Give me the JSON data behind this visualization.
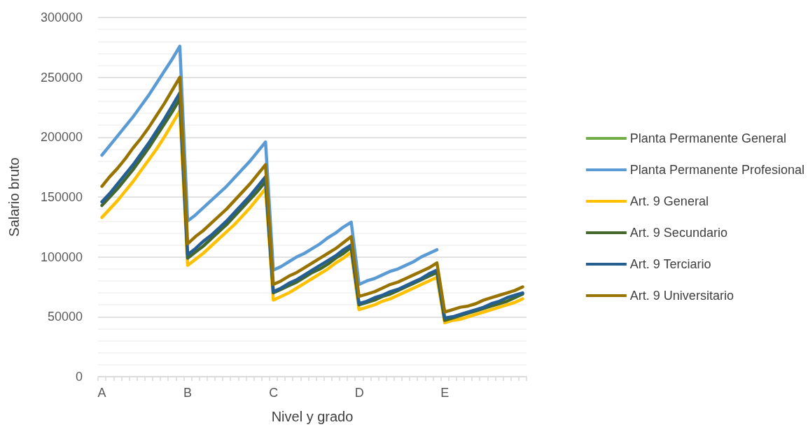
{
  "chart_data": {
    "type": "line",
    "xlabel": "Nivel y grado",
    "ylabel": "Salario bruto",
    "categories": [
      "A",
      null,
      null,
      null,
      null,
      null,
      null,
      null,
      null,
      null,
      null,
      "B",
      null,
      null,
      null,
      null,
      null,
      null,
      null,
      null,
      null,
      null,
      "C",
      null,
      null,
      null,
      null,
      null,
      null,
      null,
      null,
      null,
      null,
      "D",
      null,
      null,
      null,
      null,
      null,
      null,
      null,
      null,
      null,
      null,
      "E",
      null,
      null,
      null,
      null,
      null,
      null,
      null,
      null,
      null,
      null
    ],
    "ylim": [
      0,
      300000
    ],
    "yticks": [
      0,
      50000,
      100000,
      150000,
      200000,
      250000,
      300000
    ],
    "grid": "y",
    "legend": "right",
    "marker": "none",
    "line_style": "solid",
    "series": [
      {
        "name": "Planta Permanente General",
        "color": "#70ad47",
        "values": [
          null,
          null,
          null,
          null,
          null,
          null,
          null,
          null,
          null,
          null,
          null,
          null,
          null,
          null,
          null,
          null,
          null,
          null,
          null,
          null,
          null,
          null,
          null,
          null,
          null,
          null,
          null,
          null,
          null,
          null,
          null,
          null,
          null,
          null,
          null,
          null,
          null,
          null,
          null,
          null,
          null,
          null,
          null,
          null,
          null,
          null,
          null,
          null,
          null,
          null,
          null,
          null,
          null,
          null,
          null
        ]
      },
      {
        "name": "Planta Permanente Profesional",
        "color": "#5b9bd5",
        "values": [
          185000,
          193000,
          201000,
          209000,
          217000,
          226000,
          235000,
          245000,
          255000,
          265000,
          276000,
          130000,
          135000,
          141000,
          147000,
          153000,
          159000,
          166000,
          173000,
          180000,
          188000,
          196000,
          89000,
          92000,
          96000,
          100000,
          103000,
          107000,
          111000,
          116000,
          120000,
          125000,
          129000,
          77000,
          80000,
          82000,
          85000,
          88000,
          90000,
          93000,
          96000,
          100000,
          103000,
          106000,
          null,
          null,
          null,
          null,
          null,
          null,
          null,
          null,
          null,
          null,
          null
        ]
      },
      {
        "name": "Art. 9 General",
        "color": "#ffc000",
        "values": [
          133000,
          140000,
          147000,
          155000,
          163000,
          172000,
          181000,
          190000,
          200000,
          211000,
          222000,
          93000,
          98000,
          103000,
          109000,
          115000,
          121000,
          127000,
          134000,
          141000,
          149000,
          157000,
          64000,
          67000,
          70000,
          74000,
          78000,
          82000,
          86000,
          90000,
          95000,
          99000,
          104000,
          56000,
          58000,
          60000,
          63000,
          65000,
          68000,
          71000,
          74000,
          77000,
          80000,
          83000,
          45000,
          47000,
          48000,
          50000,
          52000,
          54000,
          56000,
          58000,
          60000,
          62000,
          65000
        ]
      },
      {
        "name": "Art. 9 Secundario",
        "color": "#43682b",
        "values": [
          143000,
          150000,
          157000,
          165000,
          173000,
          182000,
          191000,
          201000,
          211000,
          221000,
          232000,
          99000,
          104000,
          109000,
          115000,
          121000,
          127000,
          134000,
          141000,
          148000,
          155000,
          163000,
          70000,
          73000,
          76000,
          79000,
          83000,
          87000,
          90000,
          94000,
          99000,
          103000,
          108000,
          60000,
          62000,
          64000,
          67000,
          69000,
          72000,
          75000,
          78000,
          81000,
          84000,
          87000,
          47000,
          49000,
          51000,
          53000,
          55000,
          57000,
          59000,
          61000,
          63000,
          66000,
          69000
        ]
      },
      {
        "name": "Art. 9 Terciario",
        "color": "#255e91",
        "values": [
          146000,
          153000,
          161000,
          169000,
          177000,
          186000,
          195000,
          205000,
          215000,
          226000,
          237000,
          102000,
          107000,
          113000,
          118000,
          124000,
          130000,
          137000,
          144000,
          151000,
          159000,
          167000,
          71000,
          74000,
          78000,
          81000,
          85000,
          89000,
          93000,
          97000,
          101000,
          106000,
          110000,
          61000,
          63000,
          66000,
          68000,
          71000,
          73000,
          76000,
          79000,
          82000,
          86000,
          89000,
          49000,
          50000,
          52000,
          54000,
          56000,
          58000,
          61000,
          63000,
          66000,
          68000,
          70000
        ]
      },
      {
        "name": "Art. 9 Universitario",
        "color": "#997300",
        "values": [
          159000,
          167000,
          174000,
          182000,
          191000,
          199000,
          208000,
          218000,
          228000,
          239000,
          250000,
          111000,
          117000,
          122000,
          128000,
          134000,
          140000,
          147000,
          154000,
          161000,
          169000,
          177000,
          77000,
          80000,
          84000,
          87000,
          91000,
          95000,
          99000,
          103000,
          107000,
          112000,
          117000,
          67000,
          69000,
          71000,
          74000,
          77000,
          79000,
          82000,
          85000,
          88000,
          91000,
          95000,
          54000,
          56000,
          58000,
          59000,
          61000,
          64000,
          66000,
          68000,
          70000,
          72000,
          75000
        ]
      }
    ]
  }
}
